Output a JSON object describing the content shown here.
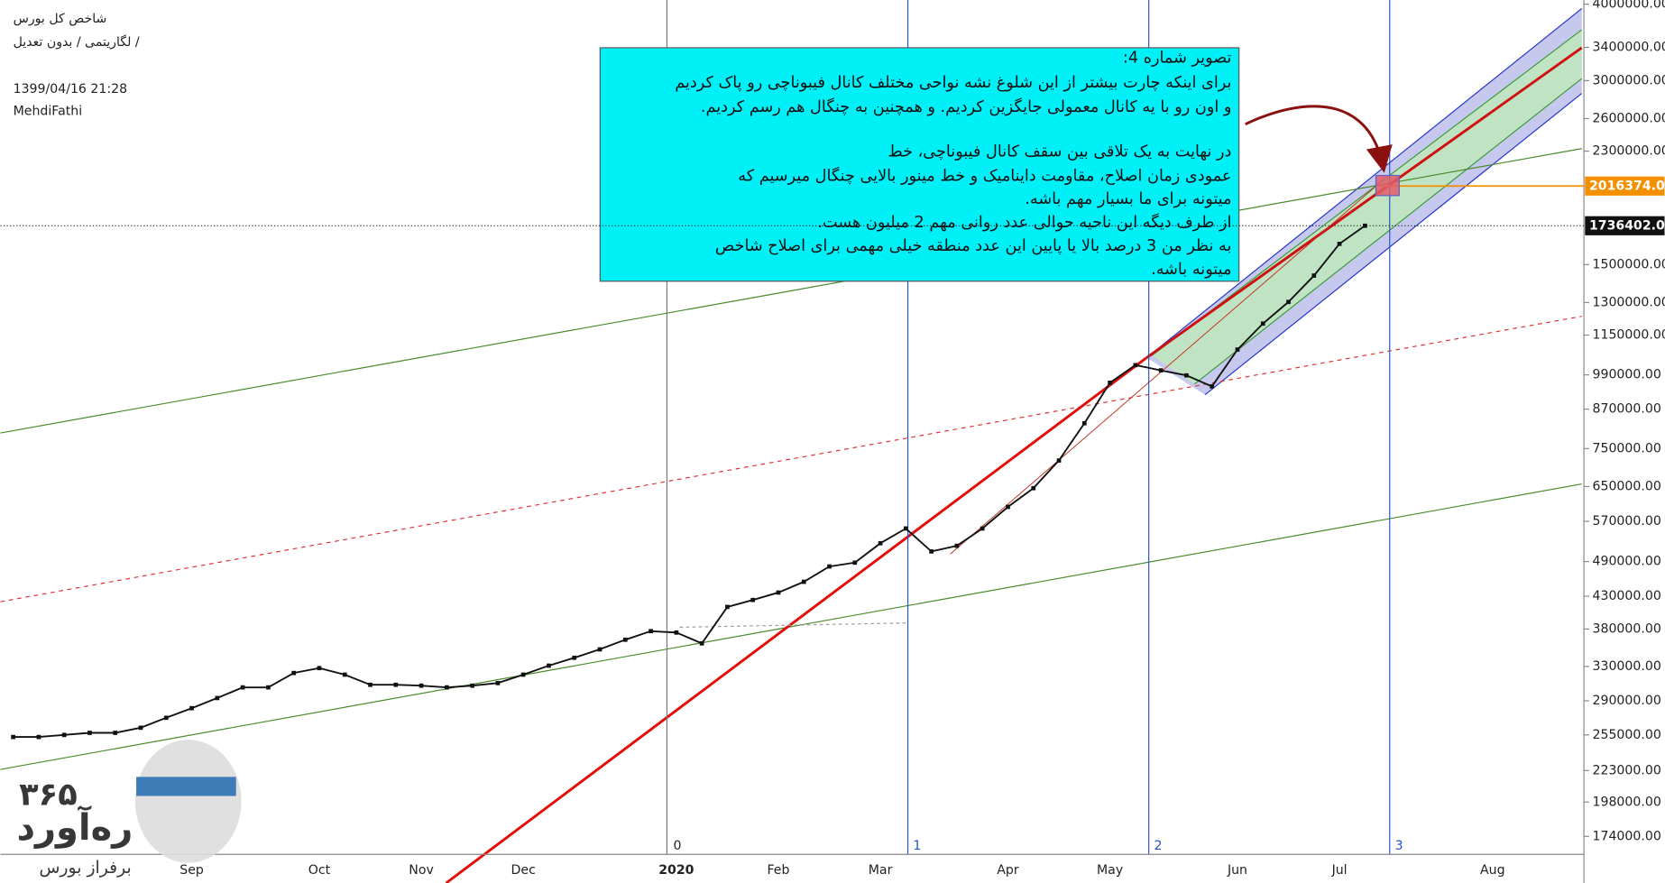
{
  "chart_data": {
    "type": "line",
    "title": "شاخص کل بورس",
    "subtitle": "لگاریتمی / بدون تعدیل /",
    "timestamp": "1399/04/16 21:28",
    "author": "MehdiFathi",
    "log_scale": true,
    "categories": [
      null,
      null,
      null,
      null,
      null,
      null,
      null,
      "Sep",
      null,
      null,
      null,
      null,
      "Oct",
      null,
      null,
      null,
      "Nov",
      null,
      null,
      null,
      "Dec",
      null,
      null,
      null,
      null,
      null,
      "2020",
      null,
      null,
      null,
      "Feb",
      null,
      null,
      null,
      "Mar",
      null,
      null,
      null,
      null,
      "Apr",
      null,
      null,
      null,
      "May",
      null,
      null,
      null,
      null,
      "Jun",
      null,
      null,
      null,
      "Jul",
      null,
      null,
      null,
      null,
      null,
      "Aug",
      null,
      null,
      null
    ],
    "series": [
      {
        "name": "شاخص کل",
        "color": "#111111",
        "values": [
          253000,
          253000,
          255000,
          257000,
          257000,
          262000,
          272000,
          282000,
          293000,
          305000,
          305000,
          322000,
          328000,
          320000,
          308000,
          308000,
          307000,
          305000,
          307000,
          310000,
          320000,
          331000,
          341000,
          352000,
          365000,
          377000,
          375000,
          360000,
          413000,
          424000,
          436000,
          454000,
          481000,
          488000,
          525000,
          555000,
          509000,
          520000,
          555000,
          602000,
          646000,
          717000,
          825000,
          961000,
          1027000,
          1007000,
          988000,
          948000,
          1089000,
          1201000,
          1303000,
          1439000,
          1622000,
          1736402.01,
          null,
          null,
          null,
          null,
          null,
          null,
          null,
          null
        ]
      }
    ],
    "ylim": [
      162600,
      4064500
    ],
    "yticks": [
      {
        "value": 174000,
        "label": "174000.00"
      },
      {
        "value": 198000,
        "label": "198000.00"
      },
      {
        "value": 223000,
        "label": "223000.00"
      },
      {
        "value": 255000,
        "label": "255000.00"
      },
      {
        "value": 290000,
        "label": "290000.00"
      },
      {
        "value": 330000,
        "label": "330000.00"
      },
      {
        "value": 380000,
        "label": "380000.00"
      },
      {
        "value": 430000,
        "label": "430000.00"
      },
      {
        "value": 490000,
        "label": "490000.00"
      },
      {
        "value": 570000,
        "label": "570000.00"
      },
      {
        "value": 650000,
        "label": "650000.00"
      },
      {
        "value": 750000,
        "label": "750000.00"
      },
      {
        "value": 870000,
        "label": "870000.00"
      },
      {
        "value": 990000,
        "label": "990000.00"
      },
      {
        "value": 1150000,
        "label": "1150000.00"
      },
      {
        "value": 1300000,
        "label": "1300000.00"
      },
      {
        "value": 1500000,
        "label": "1500000.00"
      },
      {
        "value": 2300000,
        "label": "2300000.00"
      },
      {
        "value": 2600000,
        "label": "2600000.00"
      },
      {
        "value": 3000000,
        "label": "3000000.00"
      },
      {
        "value": 3400000,
        "label": "3400000.00"
      },
      {
        "value": 4000000,
        "label": "4000000.00"
      }
    ],
    "last_price": 1736402.01,
    "target_price": 2016374.08,
    "vertical_line_labels": [
      "0",
      "1",
      "2",
      "3"
    ],
    "note": [
      "تصویر شماره 4:",
      "برای اینکه چارت بیشتر  از این شلوغ نشه نواحی مختلف کانال فیبوناچی رو پاک کردیم",
      "و اون رو با یه کانال معمولی جایگزین کردیم. و  همچنین به چنگال هم رسم کردیم.",
      "در نهایت به یک تلاقی بین سقف کانال فیبوناچی، خط",
      "عمودی زمان اصلاح، مقاومت داینامیک و خط مینور بالایی چنگال  میرسیم که",
      "میتونه برای ما بسیار مهم باشه.",
      "از طرف دیگه این ناحیه حوالی عدد روانی مهم 2 میلیون هست.",
      "به نظر من 3 درصد بالا یا پایین این عدد منطقه خیلی مهمی برای اصلاح شاخص",
      "میتونه باشه."
    ],
    "watermark": [
      "۳۶۵",
      "ره‌آورد",
      "برفراز بورس"
    ]
  }
}
